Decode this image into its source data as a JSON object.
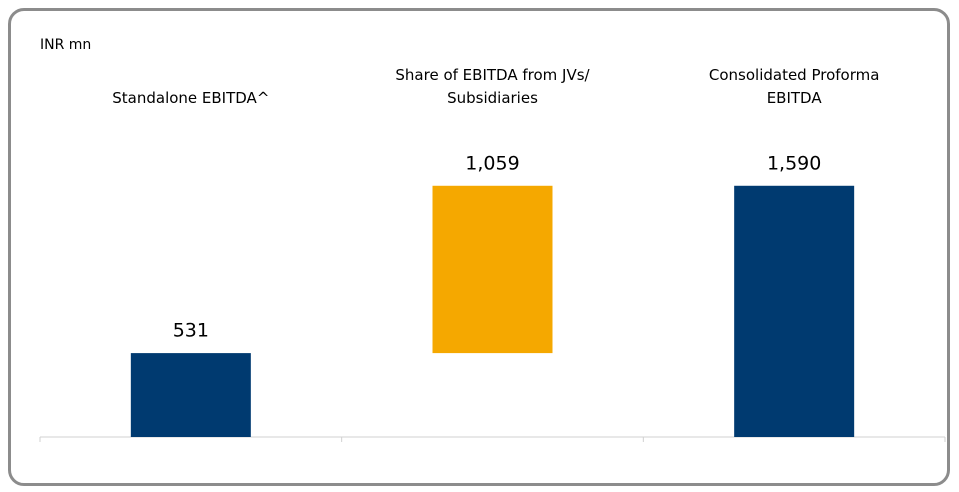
{
  "chart_data": {
    "type": "waterfall",
    "unit_label": "INR mn",
    "categories": [
      "Standalone EBITDA^",
      "Share of EBITDA from JVs/ Subsidiaries",
      "Consolidated Proforma EBITDA"
    ],
    "values": [
      531,
      1059,
      1590
    ],
    "value_labels": [
      "531",
      "1,059",
      "1,590"
    ],
    "measure": [
      "absolute",
      "relative",
      "total"
    ],
    "colors": [
      "#003a70",
      "#f5a800",
      "#003a70"
    ],
    "ylim": [
      0,
      2000
    ]
  }
}
